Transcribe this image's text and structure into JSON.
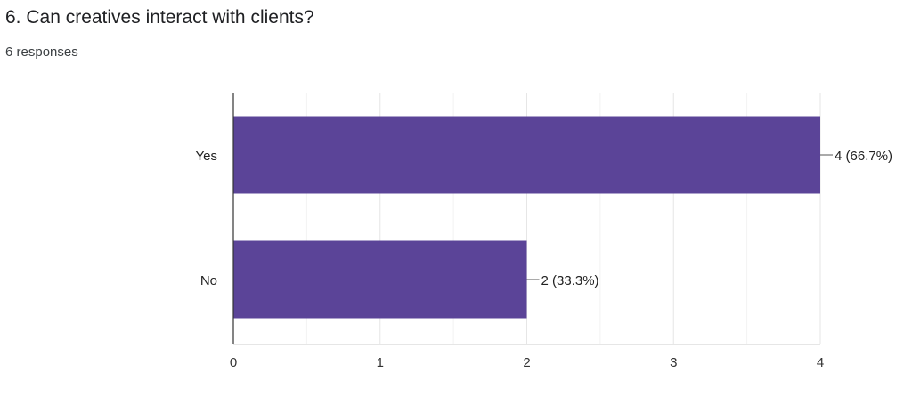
{
  "question": {
    "title": "6. Can creatives interact with clients?",
    "responses": "6 responses"
  },
  "chart_data": {
    "type": "bar",
    "orientation": "horizontal",
    "categories": [
      "Yes",
      "No"
    ],
    "values": [
      4,
      2
    ],
    "data_labels": [
      "4 (66.7%)",
      "2 (33.3%)"
    ],
    "xlim": [
      0,
      4
    ],
    "x_ticks": [
      "0",
      "1",
      "2",
      "3",
      "4"
    ],
    "title": "",
    "xlabel": "",
    "ylabel": "",
    "grid": true,
    "bar_color": "#5b4498"
  }
}
